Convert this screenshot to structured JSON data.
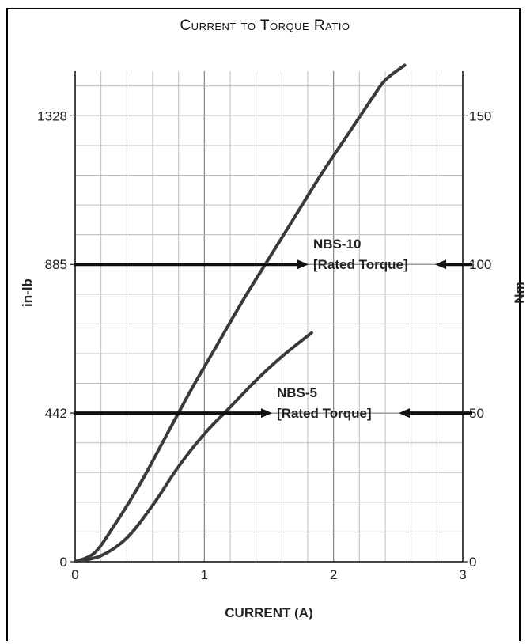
{
  "chart_data": {
    "type": "line",
    "title": "Current to Torque Ratio",
    "xlabel": "CURRENT (A)",
    "ylabel_left": "in-lb",
    "ylabel_right": "Nm",
    "xlim": [
      0,
      3
    ],
    "ylim_right": [
      0,
      165
    ],
    "x_ticks": [
      0,
      1,
      2,
      3
    ],
    "x_tick_labels": [
      "0",
      "1",
      "2",
      "3"
    ],
    "left_ticks": [
      {
        "label": "0",
        "nm": 0
      },
      {
        "label": "442",
        "nm": 50
      },
      {
        "label": "885",
        "nm": 100
      },
      {
        "label": "1328",
        "nm": 150
      }
    ],
    "right_ticks": [
      {
        "label": "0",
        "nm": 0
      },
      {
        "label": "50",
        "nm": 50
      },
      {
        "label": "100",
        "nm": 100
      },
      {
        "label": "150",
        "nm": 150
      }
    ],
    "grid": true,
    "series": [
      {
        "name": "NBS-10",
        "x": [
          0,
          0.15,
          0.3,
          0.5,
          0.7,
          0.9,
          1.1,
          1.3,
          1.5,
          1.7,
          1.9,
          2.1,
          2.3,
          2.4,
          2.55
        ],
        "y": [
          0,
          3,
          12,
          26,
          42,
          58,
          73,
          88,
          102,
          116,
          130,
          143,
          156,
          162,
          167
        ]
      },
      {
        "name": "NBS-5",
        "x": [
          0,
          0.2,
          0.4,
          0.6,
          0.8,
          1.0,
          1.2,
          1.4,
          1.6,
          1.83
        ],
        "y": [
          0,
          2,
          8,
          19,
          32,
          43,
          52,
          61,
          69,
          77
        ]
      }
    ],
    "annotations": [
      {
        "label": "NBS-10",
        "sublabel": "[Rated Torque]",
        "nm": 100
      },
      {
        "label": "NBS-5",
        "sublabel": "[Rated Torque]",
        "nm": 50
      }
    ]
  }
}
